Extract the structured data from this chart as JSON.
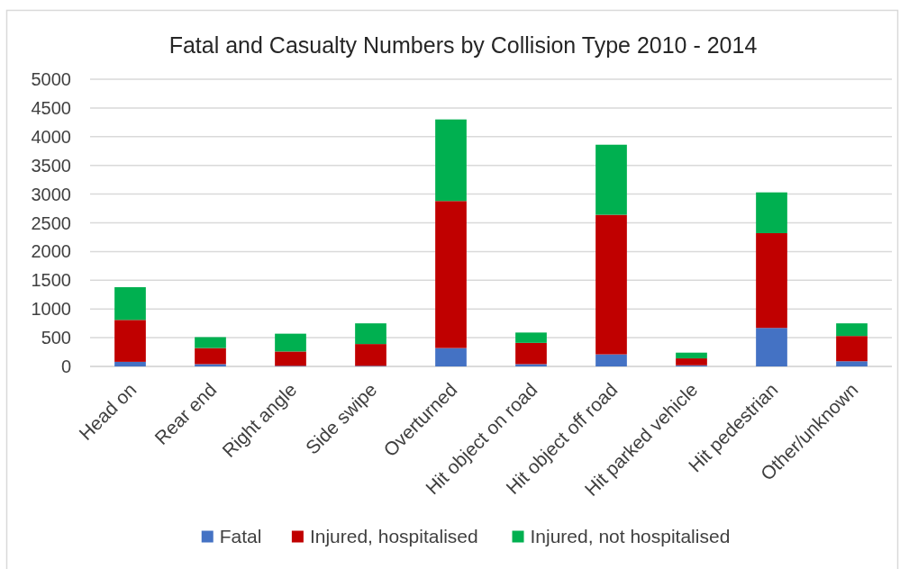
{
  "chart_data": {
    "type": "bar",
    "title": "Fatal and Casualty Numbers by Collision Type 2010 - 2014",
    "categories": [
      "Head on",
      "Rear end",
      "Right angle",
      "Side swipe",
      "Overturned",
      "Hit object on road",
      "Hit object off road",
      "Hit parked vehicle",
      "Hit pedestrian",
      "Other/unknown"
    ],
    "series": [
      {
        "name": "Fatal",
        "color": "#4472c4",
        "values": [
          80,
          40,
          10,
          10,
          320,
          40,
          210,
          20,
          670,
          90
        ]
      },
      {
        "name": "Injured, hospitalised",
        "color": "#c00000",
        "values": [
          730,
          280,
          250,
          380,
          2560,
          370,
          2430,
          120,
          1650,
          440
        ]
      },
      {
        "name": "Injured, not hospitalised",
        "color": "#00b050",
        "values": [
          570,
          190,
          310,
          360,
          1420,
          180,
          1220,
          100,
          710,
          220
        ]
      }
    ],
    "stacked": true,
    "ylim": [
      0,
      5000
    ],
    "yticks": [
      0,
      500,
      1000,
      1500,
      2000,
      2500,
      3000,
      3500,
      4000,
      4500,
      5000
    ],
    "grid": true,
    "legend": "bottom"
  }
}
